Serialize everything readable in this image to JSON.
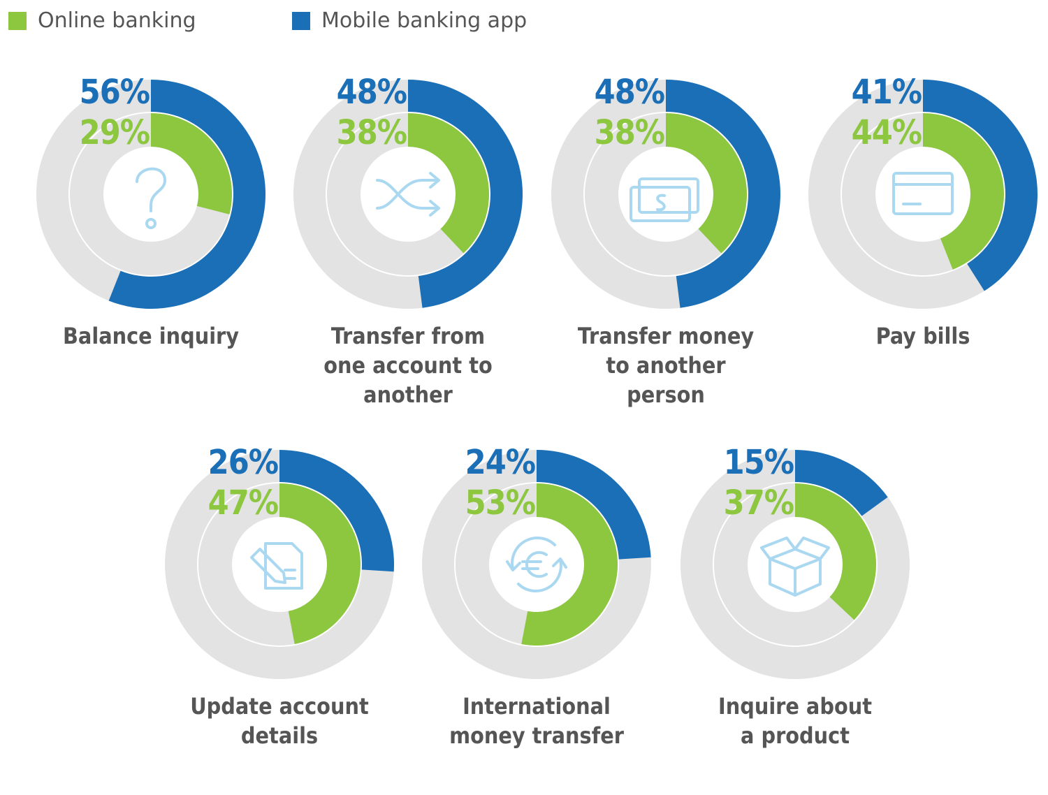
{
  "colors": {
    "online": "#8dc63f",
    "mobile": "#1a6fb7",
    "track": "#e3e3e3",
    "icon": "#aad8f0",
    "label": "#555555"
  },
  "chart_data": {
    "type": "donut",
    "legend_position": "top-left",
    "series": [
      {
        "name": "Online banking",
        "key": "online"
      },
      {
        "name": "Mobile banking app",
        "key": "mobile"
      }
    ],
    "categories": [
      "Balance inquiry",
      "Transfer from one account to another",
      "Transfer money to another person",
      "Pay bills",
      "Update account details",
      "International money transfer",
      "Inquire about a product"
    ],
    "items": [
      {
        "label": "Balance inquiry",
        "lines": "Balance inquiry",
        "icon": "question-mark-icon",
        "mobile": 56,
        "online": 29,
        "mobile_text": "56%",
        "online_text": "29%"
      },
      {
        "label": "Transfer from one account to another",
        "lines": "Transfer from\none account to\nanother",
        "icon": "shuffle-arrows-icon",
        "mobile": 48,
        "online": 38,
        "mobile_text": "48%",
        "online_text": "38%"
      },
      {
        "label": "Transfer money to another person",
        "lines": "Transfer money\nto another\nperson",
        "icon": "banknotes-icon",
        "mobile": 48,
        "online": 38,
        "mobile_text": "48%",
        "online_text": "38%"
      },
      {
        "label": "Pay bills",
        "lines": "Pay bills",
        "icon": "credit-card-icon",
        "mobile": 41,
        "online": 44,
        "mobile_text": "41%",
        "online_text": "44%"
      },
      {
        "label": "Update account details",
        "lines": "Update account\ndetails",
        "icon": "document-edit-icon",
        "mobile": 26,
        "online": 47,
        "mobile_text": "26%",
        "online_text": "47%"
      },
      {
        "label": "International money transfer",
        "lines": "International\nmoney transfer",
        "icon": "euro-exchange-icon",
        "mobile": 24,
        "online": 53,
        "mobile_text": "24%",
        "online_text": "53%"
      },
      {
        "label": "Inquire about a product",
        "lines": "Inquire about\na product",
        "icon": "open-box-icon",
        "mobile": 15,
        "online": 37,
        "mobile_text": "15%",
        "online_text": "37%"
      }
    ]
  }
}
